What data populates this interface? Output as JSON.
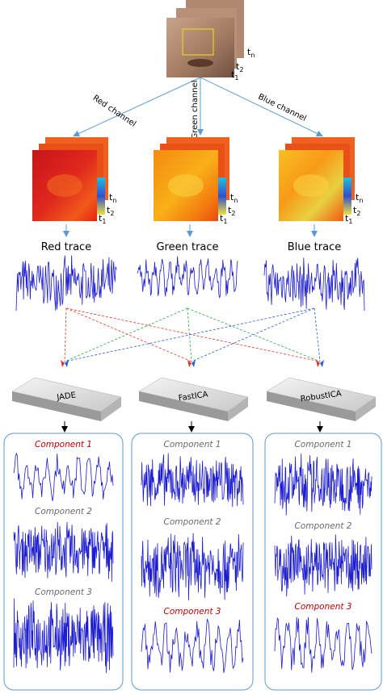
{
  "frame_labels": [
    {
      "base": "t",
      "sub": "n"
    },
    {
      "base": "t",
      "sub": "2"
    },
    {
      "base": "t",
      "sub": "1"
    }
  ],
  "channels": [
    {
      "name": "Red channel",
      "trace": "Red trace",
      "color": "#e8332a"
    },
    {
      "name": "Green channel",
      "trace": "Green trace",
      "color": "#2aa84a"
    },
    {
      "name": "Blue channel",
      "trace": "Blue trace",
      "color": "#2a5fd6"
    }
  ],
  "algorithms": [
    {
      "name": "JADE",
      "components": [
        {
          "label": "Component 1",
          "highlight": true
        },
        {
          "label": "Component 2",
          "highlight": false
        },
        {
          "label": "Component 3",
          "highlight": false
        }
      ]
    },
    {
      "name": "FastICA",
      "components": [
        {
          "label": "Component 1",
          "highlight": false
        },
        {
          "label": "Component 2",
          "highlight": false
        },
        {
          "label": "Component 3",
          "highlight": true
        }
      ]
    },
    {
      "name": "RobustICA",
      "components": [
        {
          "label": "Component 1",
          "highlight": false
        },
        {
          "label": "Component 2",
          "highlight": false
        },
        {
          "label": "Component 3",
          "highlight": true
        }
      ]
    }
  ],
  "highlight_color": "#c00000",
  "normal_color": "#6b6b6b"
}
